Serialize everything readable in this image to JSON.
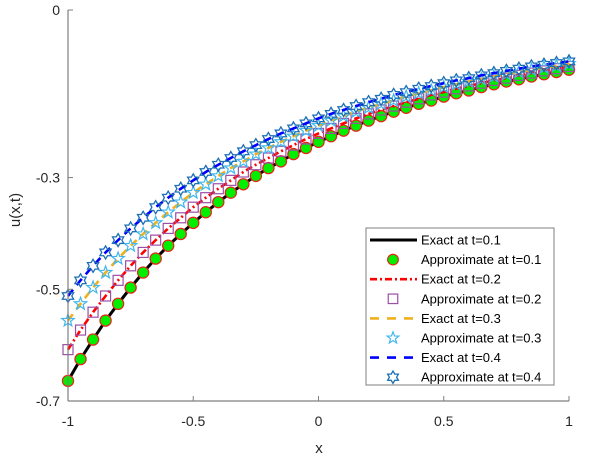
{
  "chart_data": {
    "type": "line",
    "title": "",
    "xlabel": "x",
    "ylabel": "u(x,t)",
    "xlim": [
      -1,
      1
    ],
    "ylim": [
      -0.7,
      0
    ],
    "xticks": [
      -1,
      -0.5,
      0,
      0.5,
      1
    ],
    "xtick_labels": [
      "-1",
      "-0.5",
      "0",
      "0.5",
      "1"
    ],
    "yticks": [
      0,
      -0.3,
      -0.5,
      -0.7
    ],
    "ytick_labels": [
      "0",
      "-0.3",
      "-0.5",
      "-0.7"
    ],
    "grid": false,
    "legend_position": "bottom-right",
    "x": [
      -1,
      -0.95,
      -0.9,
      -0.85,
      -0.8,
      -0.75,
      -0.7,
      -0.65,
      -0.6,
      -0.55,
      -0.5,
      -0.45,
      -0.4,
      -0.35,
      -0.3,
      -0.25,
      -0.2,
      -0.15,
      -0.1,
      -0.05,
      0,
      0.05,
      0.1,
      0.15,
      0.2,
      0.25,
      0.3,
      0.35,
      0.4,
      0.45,
      0.5,
      0.55,
      0.6,
      0.65,
      0.7,
      0.75,
      0.8,
      0.85,
      0.9,
      0.95,
      1
    ],
    "series": [
      {
        "name": "Exact at t=0.1",
        "kind": "line",
        "style": "solid",
        "color": "#000000",
        "values": [
          -0.664,
          -0.625,
          -0.59,
          -0.556,
          -0.526,
          -0.497,
          -0.47,
          -0.445,
          -0.422,
          -0.401,
          -0.381,
          -0.362,
          -0.344,
          -0.327,
          -0.312,
          -0.297,
          -0.283,
          -0.271,
          -0.258,
          -0.247,
          -0.236,
          -0.226,
          -0.216,
          -0.207,
          -0.198,
          -0.19,
          -0.182,
          -0.175,
          -0.168,
          -0.162,
          -0.155,
          -0.149,
          -0.144,
          -0.138,
          -0.133,
          -0.128,
          -0.124,
          -0.119,
          -0.115,
          -0.111,
          -0.107
        ]
      },
      {
        "name": "Approximate at t=0.1",
        "kind": "marker",
        "marker": "circle",
        "color": "#00ee00",
        "edge_color": "#e8221b",
        "values": [
          -0.664,
          -0.625,
          -0.59,
          -0.556,
          -0.526,
          -0.497,
          -0.47,
          -0.445,
          -0.422,
          -0.401,
          -0.381,
          -0.362,
          -0.344,
          -0.327,
          -0.312,
          -0.297,
          -0.283,
          -0.271,
          -0.258,
          -0.247,
          -0.236,
          -0.226,
          -0.216,
          -0.207,
          -0.198,
          -0.19,
          -0.182,
          -0.175,
          -0.168,
          -0.162,
          -0.155,
          -0.149,
          -0.144,
          -0.138,
          -0.133,
          -0.128,
          -0.124,
          -0.119,
          -0.115,
          -0.111,
          -0.107
        ]
      },
      {
        "name": "Exact at t=0.2",
        "kind": "line",
        "style": "dashdot",
        "color": "#ff0000",
        "values": [
          -0.608,
          -0.573,
          -0.541,
          -0.512,
          -0.484,
          -0.458,
          -0.434,
          -0.412,
          -0.391,
          -0.372,
          -0.353,
          -0.336,
          -0.32,
          -0.305,
          -0.29,
          -0.277,
          -0.265,
          -0.253,
          -0.242,
          -0.231,
          -0.221,
          -0.212,
          -0.203,
          -0.194,
          -0.186,
          -0.179,
          -0.172,
          -0.165,
          -0.159,
          -0.152,
          -0.147,
          -0.141,
          -0.136,
          -0.131,
          -0.126,
          -0.122,
          -0.117,
          -0.113,
          -0.109,
          -0.105,
          -0.101
        ]
      },
      {
        "name": "Approximate at t=0.2",
        "kind": "marker",
        "marker": "square",
        "color": "#ffffff",
        "edge_color": "#9b4fa6",
        "values": [
          -0.608,
          -0.573,
          -0.541,
          -0.512,
          -0.484,
          -0.458,
          -0.434,
          -0.412,
          -0.391,
          -0.372,
          -0.353,
          -0.336,
          -0.32,
          -0.305,
          -0.29,
          -0.277,
          -0.265,
          -0.253,
          -0.242,
          -0.231,
          -0.221,
          -0.212,
          -0.203,
          -0.194,
          -0.186,
          -0.179,
          -0.172,
          -0.165,
          -0.159,
          -0.152,
          -0.147,
          -0.141,
          -0.136,
          -0.131,
          -0.126,
          -0.122,
          -0.117,
          -0.113,
          -0.109,
          -0.105,
          -0.101
        ]
      },
      {
        "name": "Exact at t=0.3",
        "kind": "line",
        "style": "dashed",
        "color": "#edb120",
        "values": [
          -0.556,
          -0.526,
          -0.497,
          -0.47,
          -0.445,
          -0.422,
          -0.401,
          -0.381,
          -0.362,
          -0.344,
          -0.327,
          -0.312,
          -0.297,
          -0.283,
          -0.271,
          -0.258,
          -0.247,
          -0.236,
          -0.226,
          -0.216,
          -0.207,
          -0.198,
          -0.19,
          -0.182,
          -0.175,
          -0.168,
          -0.162,
          -0.155,
          -0.149,
          -0.144,
          -0.138,
          -0.133,
          -0.128,
          -0.124,
          -0.119,
          -0.115,
          -0.111,
          -0.107,
          -0.103,
          -0.1,
          -0.096
        ]
      },
      {
        "name": "Approximate at t=0.3",
        "kind": "marker",
        "marker": "pentagram",
        "color": "#ffffff",
        "edge_color": "#3fb6ee",
        "values": [
          -0.556,
          -0.526,
          -0.497,
          -0.47,
          -0.445,
          -0.422,
          -0.401,
          -0.381,
          -0.362,
          -0.344,
          -0.327,
          -0.312,
          -0.297,
          -0.283,
          -0.271,
          -0.258,
          -0.247,
          -0.236,
          -0.226,
          -0.216,
          -0.207,
          -0.198,
          -0.19,
          -0.182,
          -0.175,
          -0.168,
          -0.162,
          -0.155,
          -0.149,
          -0.144,
          -0.138,
          -0.133,
          -0.128,
          -0.124,
          -0.119,
          -0.115,
          -0.111,
          -0.107,
          -0.103,
          -0.1,
          -0.096
        ]
      },
      {
        "name": "Exact at t=0.4",
        "kind": "line",
        "style": "dashed",
        "color": "#0000ff",
        "values": [
          -0.512,
          -0.484,
          -0.458,
          -0.434,
          -0.412,
          -0.391,
          -0.372,
          -0.353,
          -0.336,
          -0.32,
          -0.305,
          -0.29,
          -0.277,
          -0.265,
          -0.253,
          -0.242,
          -0.231,
          -0.221,
          -0.212,
          -0.203,
          -0.194,
          -0.186,
          -0.179,
          -0.172,
          -0.165,
          -0.159,
          -0.152,
          -0.147,
          -0.141,
          -0.136,
          -0.131,
          -0.126,
          -0.122,
          -0.117,
          -0.113,
          -0.109,
          -0.105,
          -0.101,
          -0.098,
          -0.095,
          -0.092
        ]
      },
      {
        "name": "Approximate at t=0.4",
        "kind": "marker",
        "marker": "hexagram",
        "color": "#ffffff",
        "edge_color": "#1a6fb5",
        "values": [
          -0.512,
          -0.484,
          -0.458,
          -0.434,
          -0.412,
          -0.391,
          -0.372,
          -0.353,
          -0.336,
          -0.32,
          -0.305,
          -0.29,
          -0.277,
          -0.265,
          -0.253,
          -0.242,
          -0.231,
          -0.221,
          -0.212,
          -0.203,
          -0.194,
          -0.186,
          -0.179,
          -0.172,
          -0.165,
          -0.159,
          -0.152,
          -0.147,
          -0.141,
          -0.136,
          -0.131,
          -0.126,
          -0.122,
          -0.117,
          -0.113,
          -0.109,
          -0.105,
          -0.101,
          -0.098,
          -0.095,
          -0.092
        ]
      }
    ]
  }
}
